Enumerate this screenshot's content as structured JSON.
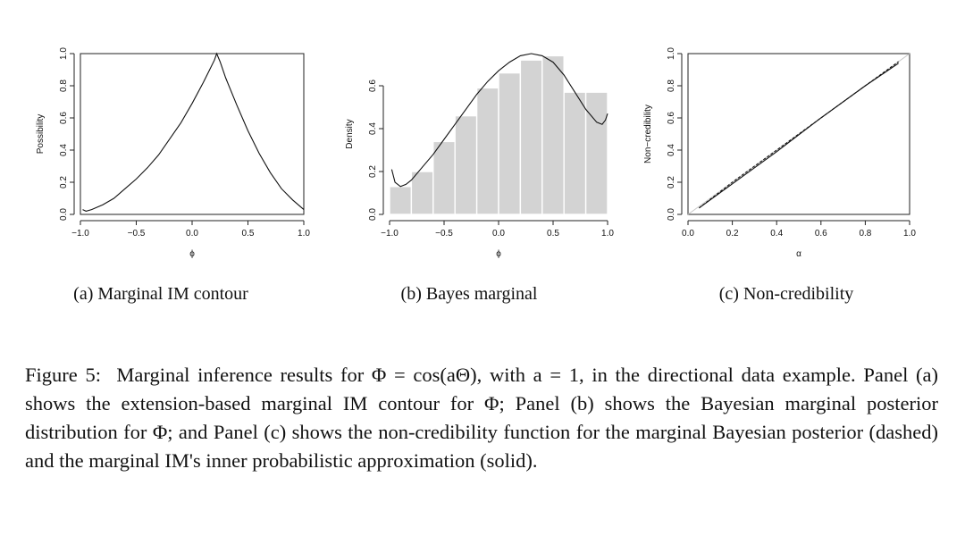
{
  "panels": [
    {
      "subcaption": "(a) Marginal IM contour"
    },
    {
      "subcaption": "(b) Bayes marginal"
    },
    {
      "subcaption": "(c) Non-credibility"
    }
  ],
  "caption": {
    "label": "Figure 5:",
    "text": "Marginal inference results for Φ = cos(aΘ), with a = 1, in the directional data example. Panel (a) shows the extension-based marginal IM contour for Φ; Panel (b) shows the Bayesian marginal posterior distribution for Φ; and Panel (c) shows the non-credibility function for the marginal Bayesian posterior (dashed) and the marginal IM's inner probabilistic approximation (solid)."
  },
  "chart_data": [
    {
      "type": "line",
      "title": "",
      "xlabel": "ϕ",
      "ylabel": "Possibility",
      "xlim": [
        -1,
        1
      ],
      "ylim": [
        0,
        1
      ],
      "xticks": [
        "−1.0",
        "−0.5",
        "0.0",
        "0.5",
        "1.0"
      ],
      "yticks": [
        "0.0",
        "0.2",
        "0.4",
        "0.6",
        "0.8",
        "1.0"
      ],
      "x": [
        -0.98,
        -0.95,
        -0.9,
        -0.8,
        -0.7,
        -0.6,
        -0.5,
        -0.4,
        -0.3,
        -0.2,
        -0.1,
        0.0,
        0.1,
        0.15,
        0.2,
        0.22,
        0.25,
        0.3,
        0.4,
        0.5,
        0.6,
        0.7,
        0.8,
        0.9,
        1.0
      ],
      "y": [
        0.03,
        0.02,
        0.03,
        0.06,
        0.1,
        0.16,
        0.22,
        0.29,
        0.37,
        0.47,
        0.57,
        0.69,
        0.82,
        0.89,
        0.96,
        1.0,
        0.95,
        0.85,
        0.68,
        0.52,
        0.38,
        0.26,
        0.16,
        0.09,
        0.03
      ]
    },
    {
      "type": "bar",
      "title": "",
      "xlabel": "ϕ",
      "ylabel": "Density",
      "xlim": [
        -1,
        1
      ],
      "ylim": [
        0,
        0.75
      ],
      "xticks": [
        "−1.0",
        "−0.5",
        "0.0",
        "0.5",
        "1.0"
      ],
      "yticks": [
        "0.0",
        "0.2",
        "0.4",
        "0.6"
      ],
      "bins": [
        [
          -1.0,
          -0.8
        ],
        [
          -0.8,
          -0.6
        ],
        [
          -0.6,
          -0.4
        ],
        [
          -0.4,
          -0.2
        ],
        [
          -0.2,
          0.0
        ],
        [
          0.0,
          0.2
        ],
        [
          0.2,
          0.4
        ],
        [
          0.4,
          0.6
        ],
        [
          0.6,
          0.8
        ],
        [
          0.8,
          1.0
        ]
      ],
      "values": [
        0.13,
        0.2,
        0.34,
        0.46,
        0.59,
        0.66,
        0.72,
        0.74,
        0.57,
        0.57
      ],
      "density_curve": {
        "x": [
          -0.98,
          -0.95,
          -0.9,
          -0.85,
          -0.8,
          -0.7,
          -0.6,
          -0.5,
          -0.4,
          -0.3,
          -0.2,
          -0.1,
          0.0,
          0.1,
          0.2,
          0.3,
          0.4,
          0.5,
          0.6,
          0.7,
          0.8,
          0.9,
          0.95,
          0.98,
          1.0
        ],
        "y": [
          0.21,
          0.15,
          0.13,
          0.14,
          0.16,
          0.22,
          0.28,
          0.35,
          0.42,
          0.49,
          0.56,
          0.62,
          0.67,
          0.71,
          0.74,
          0.75,
          0.74,
          0.71,
          0.65,
          0.57,
          0.49,
          0.43,
          0.42,
          0.44,
          0.47
        ]
      }
    },
    {
      "type": "line",
      "title": "",
      "xlabel": "α",
      "ylabel": "Non−credibility",
      "xlim": [
        0,
        1
      ],
      "ylim": [
        0,
        1
      ],
      "xticks": [
        "0.0",
        "0.2",
        "0.4",
        "0.6",
        "0.8",
        "1.0"
      ],
      "yticks": [
        "0.0",
        "0.2",
        "0.4",
        "0.6",
        "0.8",
        "1.0"
      ],
      "series": [
        {
          "style": "solid",
          "x": [
            0.05,
            0.2,
            0.4,
            0.6,
            0.8,
            0.95
          ],
          "y": [
            0.04,
            0.19,
            0.39,
            0.6,
            0.8,
            0.94
          ]
        },
        {
          "style": "dashed",
          "x": [
            0.05,
            0.2,
            0.4,
            0.6,
            0.8,
            0.95
          ],
          "y": [
            0.04,
            0.2,
            0.4,
            0.6,
            0.8,
            0.95
          ]
        }
      ],
      "reference_line": {
        "x": [
          0,
          1
        ],
        "y": [
          0,
          1
        ]
      }
    }
  ]
}
